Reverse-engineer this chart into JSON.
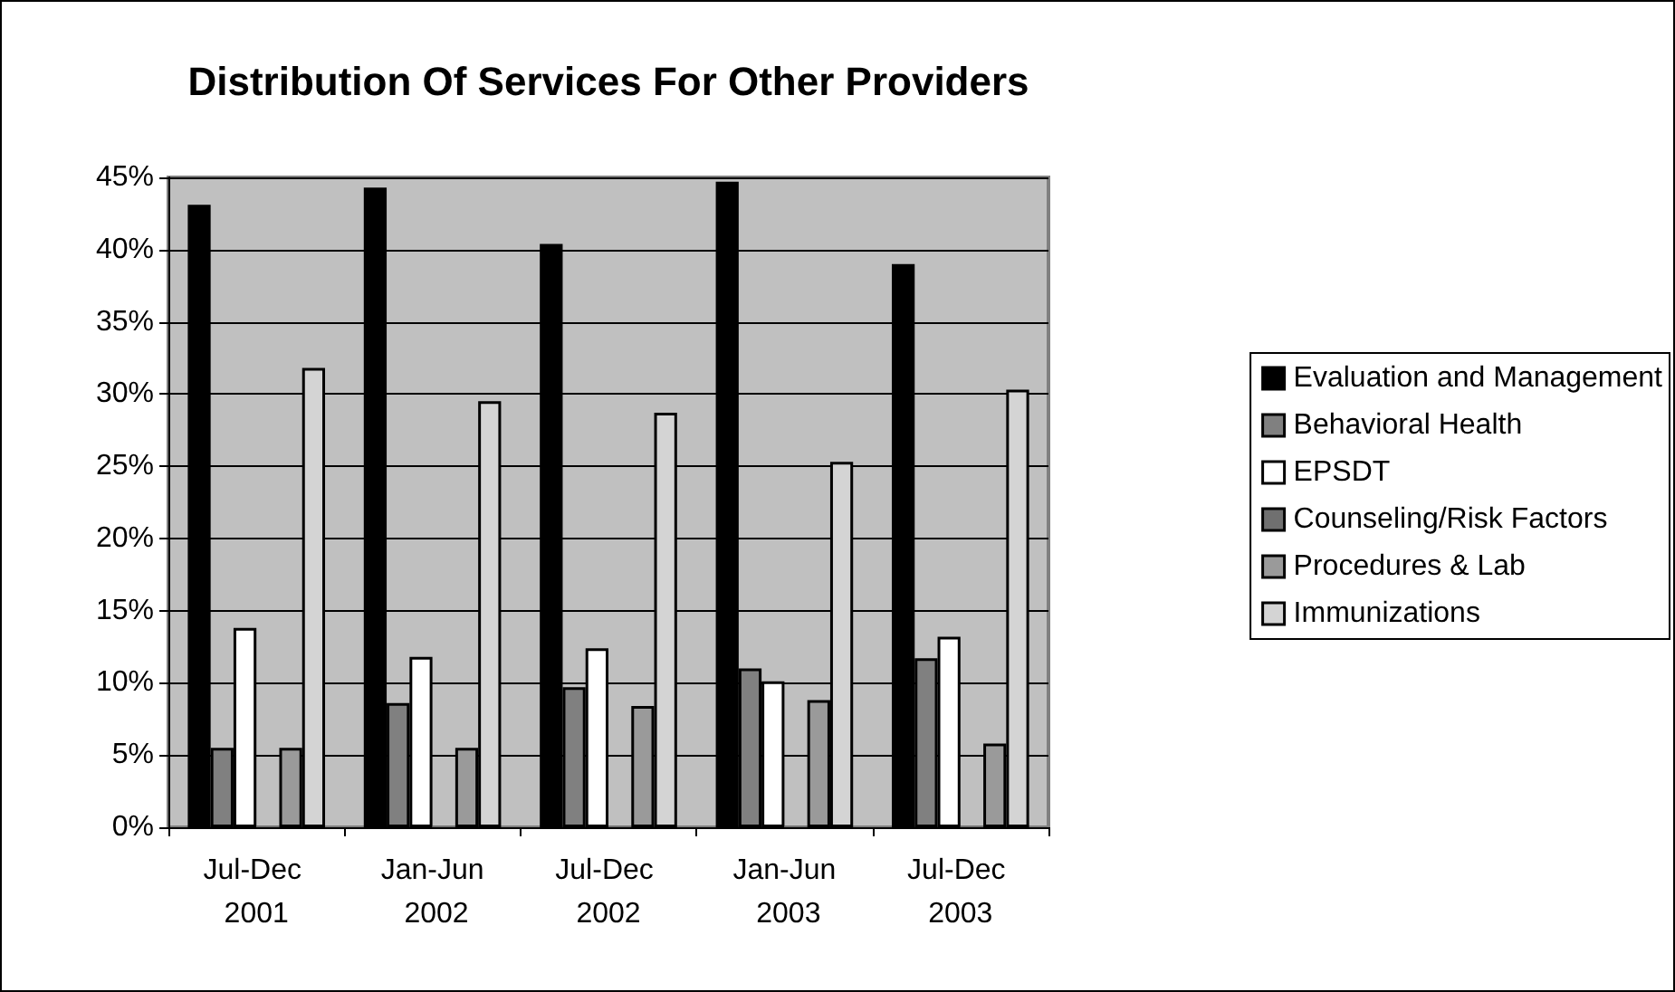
{
  "chart_data": {
    "type": "bar",
    "title": "Distribution Of Services For Other Providers",
    "categories": [
      "Jul-Dec 2001",
      "Jan-Jun 2002",
      "Jul-Dec 2002",
      "Jan-Jun 2003",
      "Jul-Dec 2003"
    ],
    "series": [
      {
        "name": "Evaluation and Management",
        "color": "#000000",
        "values": [
          43.1,
          44.3,
          40.4,
          44.7,
          39.0
        ]
      },
      {
        "name": "Behavioral Health",
        "color": "#808080",
        "values": [
          5.5,
          8.6,
          9.7,
          11.0,
          11.7
        ]
      },
      {
        "name": "EPSDT",
        "color": "#ffffff",
        "values": [
          13.8,
          11.8,
          12.4,
          10.1,
          13.2
        ]
      },
      {
        "name": "Counseling/Risk Factors",
        "color": "#707070",
        "values": [
          0.1,
          0.1,
          0.1,
          0.1,
          0.1
        ]
      },
      {
        "name": "Procedures & Lab",
        "color": "#9a9a9a",
        "values": [
          5.5,
          5.5,
          8.4,
          8.8,
          5.8
        ]
      },
      {
        "name": "Immunizations",
        "color": "#d4d4d4",
        "values": [
          31.8,
          29.5,
          28.7,
          25.3,
          30.3
        ]
      }
    ],
    "ylim": [
      0,
      45
    ],
    "yticks": [
      {
        "value": 0,
        "label": "0%"
      },
      {
        "value": 5,
        "label": "5%"
      },
      {
        "value": 10,
        "label": "10%"
      },
      {
        "value": 15,
        "label": "15%"
      },
      {
        "value": 20,
        "label": "20%"
      },
      {
        "value": 25,
        "label": "25%"
      },
      {
        "value": 30,
        "label": "30%"
      },
      {
        "value": 35,
        "label": "35%"
      },
      {
        "value": 40,
        "label": "40%"
      },
      {
        "value": 45,
        "label": "45%"
      }
    ],
    "grid": "y",
    "legend": "right"
  }
}
